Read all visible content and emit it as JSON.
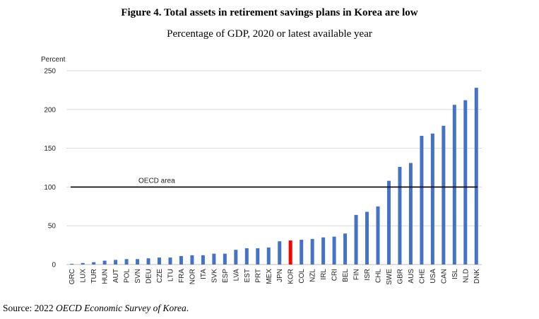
{
  "chart_data": {
    "type": "bar",
    "title": "Figure 4. Total assets in retirement savings plans in Korea are low",
    "subtitle": "Percentage of GDP, 2020 or latest available year",
    "ylabel": "Percent",
    "ylim": [
      0,
      250
    ],
    "yticks": [
      0,
      50,
      100,
      150,
      200,
      250
    ],
    "grid": true,
    "categories": [
      "GRC",
      "LUX",
      "TUR",
      "HUN",
      "AUT",
      "POL",
      "SVN",
      "DEU",
      "CZE",
      "LTU",
      "FRA",
      "NOR",
      "ITA",
      "SVK",
      "ESP",
      "LVA",
      "EST",
      "PRT",
      "MEX",
      "JPN",
      "KOR",
      "COL",
      "NZL",
      "IRL",
      "CRI",
      "BEL",
      "FIN",
      "ISR",
      "CHL",
      "SWE",
      "GBR",
      "AUS",
      "CHE",
      "USA",
      "CAN",
      "ISL",
      "NLD",
      "DNK"
    ],
    "values": [
      1,
      2,
      3,
      5,
      6,
      7,
      7,
      8,
      9,
      9,
      11,
      12,
      12,
      14,
      14,
      19,
      21,
      21,
      22,
      30,
      31,
      32,
      33,
      35,
      36,
      40,
      64,
      68,
      75,
      108,
      126,
      131,
      166,
      169,
      179,
      206,
      212,
      228
    ],
    "highlight": "KOR",
    "colors": {
      "bar": "#4472C4",
      "highlight": "#FF0000",
      "reference": "#000000",
      "grid": "#d9d9d9"
    },
    "reference_line": {
      "label": "OECD area",
      "value": 100
    }
  },
  "source": {
    "prefix": "Source: 2022 ",
    "italic": "OECD Economic Survey of Korea",
    "suffix": "."
  }
}
